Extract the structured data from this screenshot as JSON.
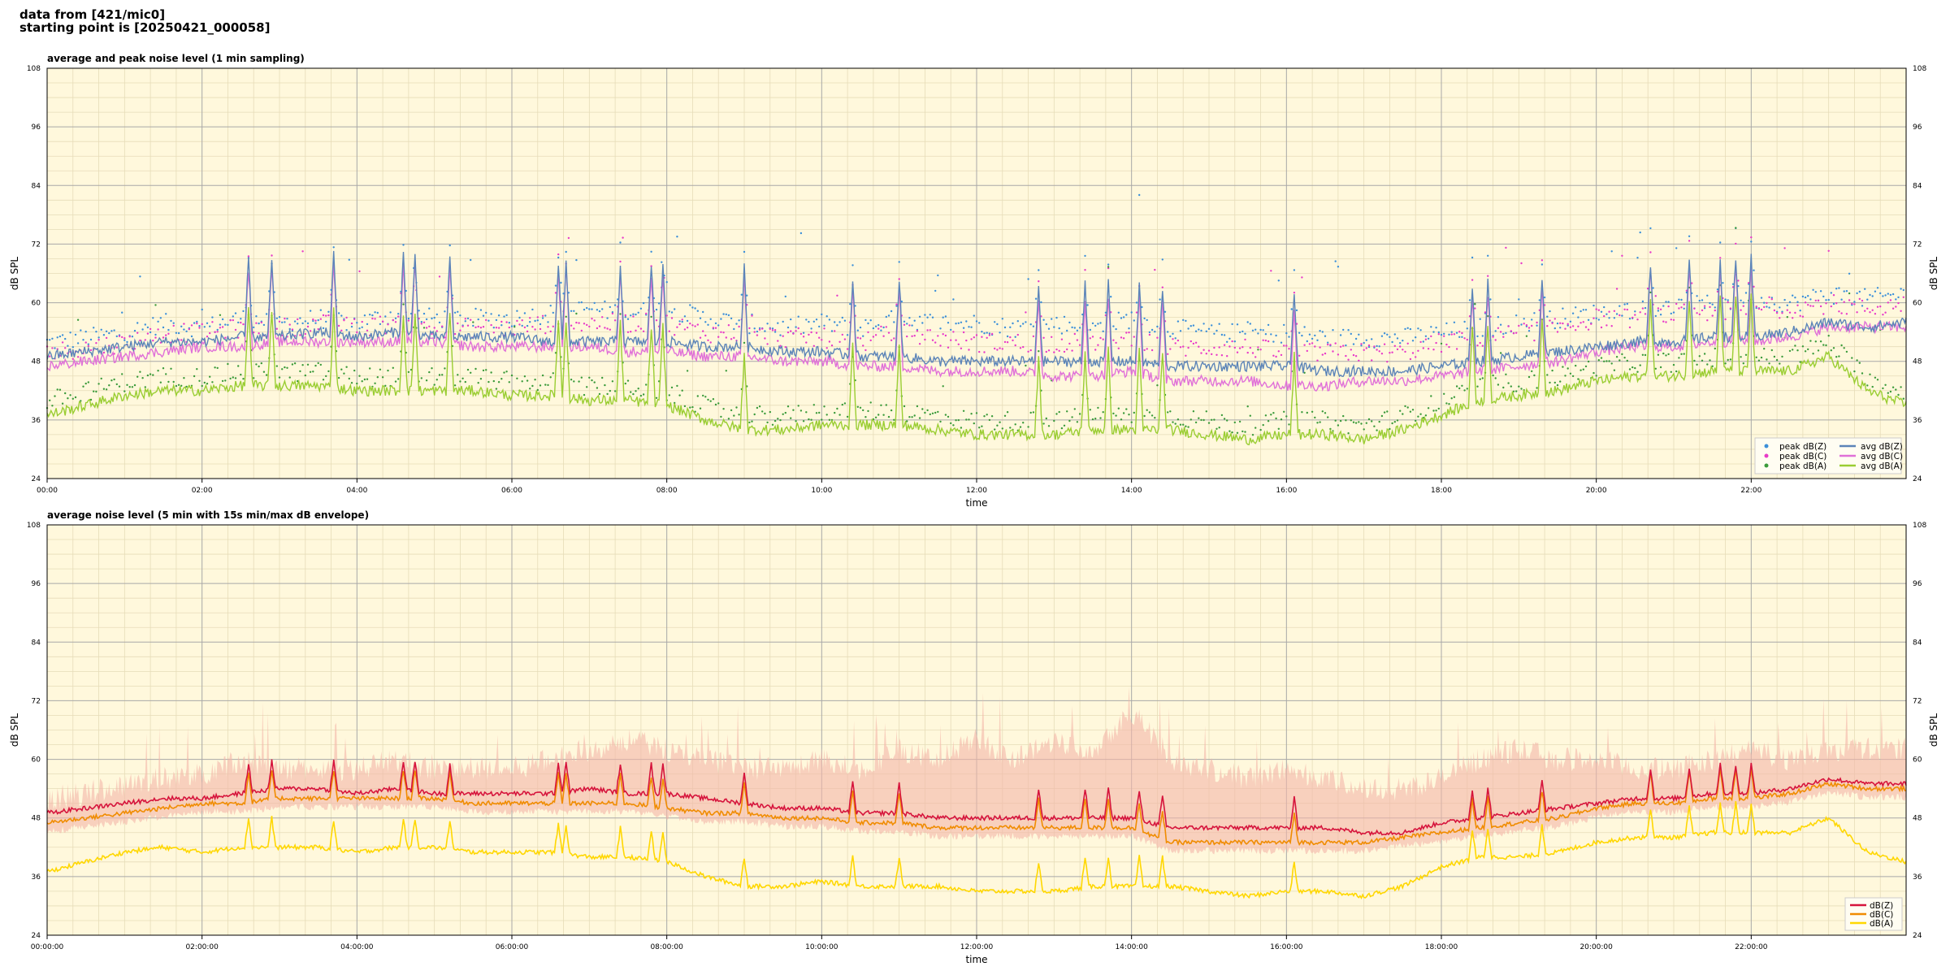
{
  "header": {
    "line1": "data from [421/mic0]",
    "line2": "starting point is [20250421_000058]"
  },
  "chart_data": [
    {
      "type": "line",
      "title": "average and peak noise level (1 min sampling)",
      "xlabel": "time",
      "ylabel": "dB SPL",
      "ylim": [
        24,
        108
      ],
      "yticks": [
        "24",
        "36",
        "48",
        "60",
        "72",
        "84",
        "96",
        "108"
      ],
      "xlim": [
        "00:00",
        "24:00"
      ],
      "xticks": [
        "00:00",
        "02:00",
        "04:00",
        "06:00",
        "08:00",
        "10:00",
        "12:00",
        "14:00",
        "16:00",
        "18:00",
        "20:00",
        "22:00"
      ],
      "grid": true,
      "legend_position": "bottom-right",
      "legend": [
        "peak dB(Z)",
        "peak dB(C)",
        "peak dB(A)",
        "avg dB(Z)",
        "avg dB(C)",
        "avg dB(A)"
      ],
      "colors": {
        "peak_z": "#3b8fd9",
        "peak_c": "#e83ac8",
        "peak_a": "#3a9a3a",
        "avg_z": "#5b84b8",
        "avg_c": "#e070d8",
        "avg_a": "#9acd32"
      },
      "x_hours": [
        0,
        0.5,
        1,
        1.5,
        2,
        2.5,
        3,
        3.5,
        4,
        4.5,
        5,
        5.5,
        6,
        6.5,
        7,
        7.5,
        8,
        8.5,
        9,
        9.5,
        10,
        10.5,
        11,
        11.5,
        12,
        12.5,
        13,
        13.5,
        14,
        14.5,
        15,
        15.5,
        16,
        16.5,
        17,
        17.5,
        18,
        18.5,
        19,
        19.5,
        20,
        20.5,
        21,
        21.5,
        22,
        22.5,
        23,
        23.5,
        24
      ],
      "series": [
        {
          "name": "avg dB(Z)",
          "values": [
            49,
            50,
            51,
            52,
            52,
            53,
            53,
            54,
            53,
            54,
            53,
            53,
            53,
            52,
            52,
            52,
            52,
            51,
            51,
            50,
            50,
            49,
            49,
            48,
            48,
            48,
            48,
            48,
            48,
            47,
            47,
            47,
            47,
            46,
            46,
            46,
            47,
            48,
            49,
            50,
            51,
            52,
            52,
            53,
            53,
            54,
            56,
            55,
            56
          ]
        },
        {
          "name": "avg dB(C)",
          "values": [
            47,
            48,
            49,
            50,
            51,
            51,
            52,
            52,
            52,
            52,
            52,
            51,
            51,
            51,
            51,
            50,
            50,
            49,
            49,
            48,
            48,
            47,
            47,
            46,
            46,
            46,
            45,
            45,
            46,
            44,
            44,
            44,
            43,
            43,
            44,
            44,
            45,
            46,
            47,
            48,
            50,
            51,
            51,
            52,
            52,
            53,
            55,
            55,
            55
          ]
        },
        {
          "name": "avg dB(A)",
          "values": [
            37,
            39,
            41,
            42,
            42,
            43,
            43,
            43,
            42,
            42,
            42,
            42,
            41,
            41,
            40,
            40,
            39,
            36,
            34,
            34,
            35,
            35,
            35,
            34,
            33,
            33,
            33,
            34,
            34,
            34,
            33,
            32,
            33,
            33,
            32,
            34,
            37,
            40,
            41,
            42,
            44,
            45,
            45,
            46,
            46,
            46,
            49,
            42,
            39
          ]
        }
      ],
      "peak_series": [
        {
          "name": "peak dB(Z)",
          "values": [
            51,
            52,
            53,
            55,
            54,
            56,
            55,
            56,
            55,
            57,
            56,
            56,
            56,
            57,
            58,
            57,
            58,
            56,
            55,
            54,
            55,
            54,
            56,
            55,
            55,
            54,
            55,
            54,
            56,
            54,
            53,
            53,
            53,
            52,
            52,
            52,
            53,
            54,
            55,
            56,
            57,
            58,
            58,
            59,
            60,
            59,
            61,
            60,
            61
          ]
        },
        {
          "name": "peak dB(C)",
          "values": [
            49,
            50,
            51,
            53,
            53,
            54,
            54,
            55,
            54,
            55,
            54,
            54,
            54,
            55,
            55,
            55,
            55,
            53,
            53,
            52,
            52,
            51,
            53,
            52,
            51,
            51,
            51,
            51,
            52,
            50,
            50,
            50,
            49,
            49,
            49,
            49,
            51,
            52,
            53,
            54,
            56,
            56,
            57,
            57,
            58,
            58,
            59,
            58,
            59
          ]
        },
        {
          "name": "peak dB(A)",
          "values": [
            39,
            41,
            43,
            44,
            44,
            45,
            45,
            45,
            44,
            44,
            44,
            44,
            43,
            43,
            42,
            42,
            41,
            38,
            36,
            36,
            37,
            37,
            37,
            36,
            35,
            35,
            35,
            36,
            36,
            36,
            35,
            34,
            35,
            35,
            34,
            36,
            39,
            42,
            43,
            44,
            46,
            47,
            47,
            48,
            48,
            48,
            51,
            44,
            41
          ]
        }
      ]
    },
    {
      "type": "line",
      "title": "average noise level (5 min with 15s min/max dB envelope)",
      "xlabel": "time",
      "ylabel": "dB SPL",
      "ylim": [
        24,
        108
      ],
      "yticks": [
        "24",
        "36",
        "48",
        "60",
        "72",
        "84",
        "96",
        "108"
      ],
      "xlim": [
        "00:00:00",
        "24:00:00"
      ],
      "xticks": [
        "00:00:00",
        "02:00:00",
        "04:00:00",
        "06:00:00",
        "08:00:00",
        "10:00:00",
        "12:00:00",
        "14:00:00",
        "16:00:00",
        "18:00:00",
        "20:00:00",
        "22:00:00"
      ],
      "grid": true,
      "legend_position": "bottom-right",
      "legend": [
        "dB(Z)",
        "dB(C)",
        "dB(A)"
      ],
      "colors": {
        "z": "#d6143c",
        "c": "#f08c00",
        "a": "#ffd700",
        "envelope": "#f4b6a8"
      },
      "x_hours": [
        0,
        0.5,
        1,
        1.5,
        2,
        2.5,
        3,
        3.5,
        4,
        4.5,
        5,
        5.5,
        6,
        6.5,
        7,
        7.5,
        8,
        8.5,
        9,
        9.5,
        10,
        10.5,
        11,
        11.5,
        12,
        12.5,
        13,
        13.5,
        14,
        14.5,
        15,
        15.5,
        16,
        16.5,
        17,
        17.5,
        18,
        18.5,
        19,
        19.5,
        20,
        20.5,
        21,
        21.5,
        22,
        22.5,
        23,
        23.5,
        24
      ],
      "series": [
        {
          "name": "dB(Z)",
          "values": [
            49,
            50,
            51,
            52,
            52,
            53,
            54,
            54,
            53,
            54,
            53,
            53,
            53,
            53,
            54,
            53,
            53,
            52,
            51,
            50,
            50,
            49,
            49,
            48,
            48,
            48,
            48,
            48,
            48,
            46,
            46,
            46,
            46,
            46,
            45,
            45,
            47,
            48,
            49,
            50,
            51,
            52,
            52,
            53,
            53,
            54,
            56,
            55,
            55
          ]
        },
        {
          "name": "dB(C)",
          "values": [
            47,
            48,
            49,
            50,
            51,
            51,
            52,
            52,
            52,
            52,
            52,
            51,
            51,
            51,
            51,
            51,
            50,
            49,
            49,
            48,
            48,
            47,
            47,
            46,
            46,
            46,
            46,
            46,
            46,
            43,
            43,
            43,
            43,
            43,
            43,
            44,
            45,
            46,
            47,
            48,
            50,
            51,
            51,
            52,
            52,
            53,
            55,
            54,
            54
          ]
        },
        {
          "name": "dB(A)",
          "values": [
            37,
            39,
            41,
            42,
            41,
            42,
            42,
            42,
            41,
            42,
            42,
            41,
            41,
            41,
            40,
            40,
            39,
            36,
            34,
            34,
            35,
            34,
            34,
            34,
            33,
            33,
            33,
            34,
            34,
            34,
            33,
            32,
            33,
            33,
            32,
            34,
            38,
            40,
            40,
            41,
            43,
            44,
            44,
            45,
            45,
            45,
            48,
            41,
            39
          ]
        }
      ],
      "envelope_max": [
        52,
        53,
        55,
        56,
        57,
        60,
        58,
        58,
        58,
        60,
        58,
        58,
        58,
        60,
        62,
        64,
        62,
        60,
        58,
        58,
        60,
        58,
        62,
        60,
        64,
        60,
        64,
        62,
        70,
        60,
        58,
        56,
        58,
        56,
        54,
        54,
        56,
        60,
        62,
        60,
        60,
        58,
        58,
        60,
        62,
        60,
        62,
        62,
        62
      ]
    }
  ]
}
